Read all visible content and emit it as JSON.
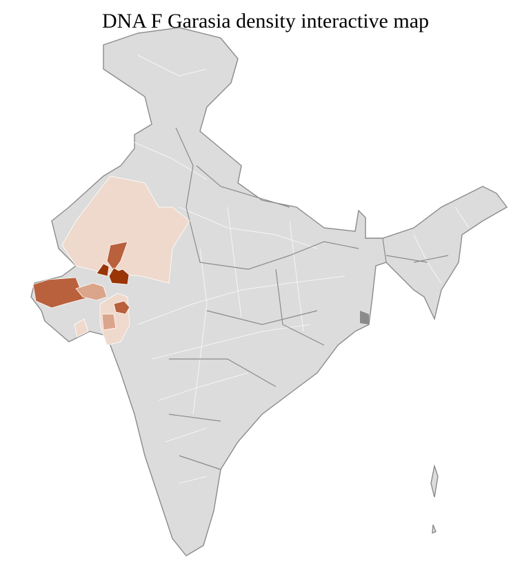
{
  "title": "DNA F Garasia density interactive map",
  "map": {
    "region": "India districts",
    "colors": {
      "no_data": "#dcdcdc",
      "border": "#8a8a8a",
      "density_low": "#efd9cd",
      "density_mid_low": "#dba58b",
      "density_mid": "#b9603d",
      "density_high": "#9a3506"
    }
  }
}
